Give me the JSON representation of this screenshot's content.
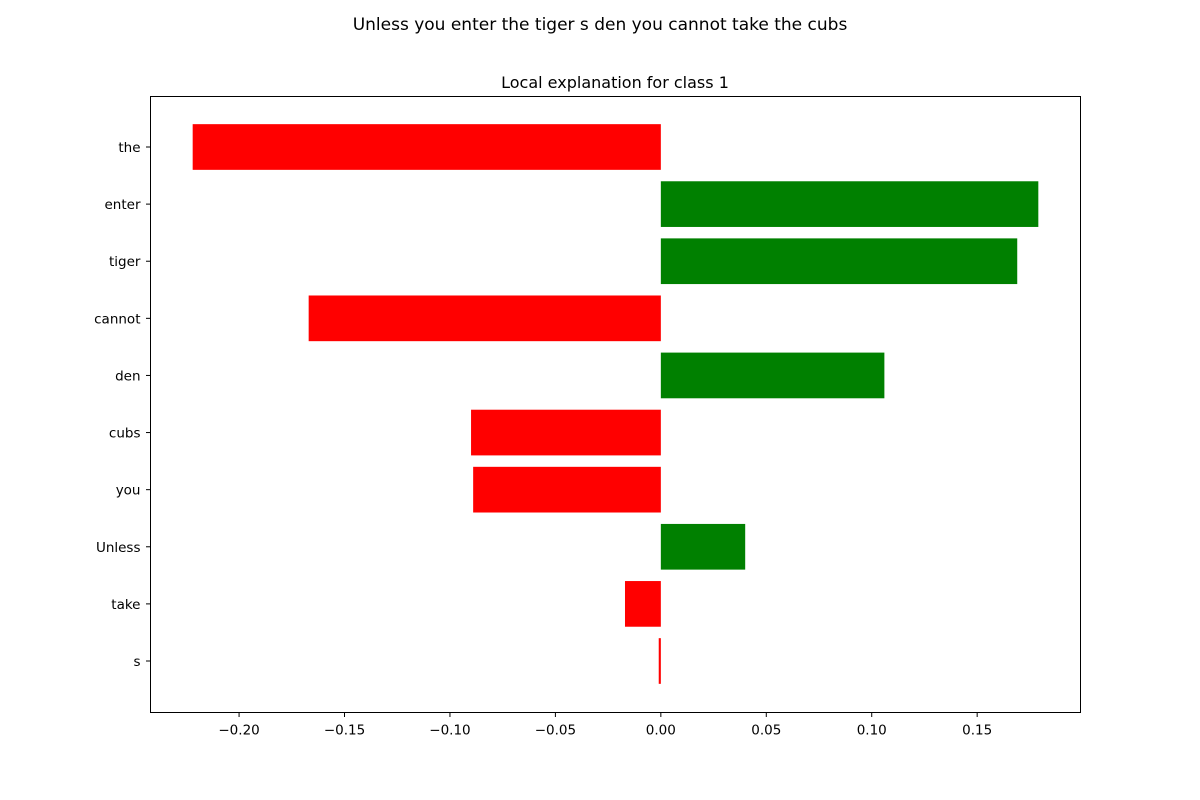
{
  "figure": {
    "suptitle": "Unless you enter the tiger s den you cannot take the cubs"
  },
  "chart_data": {
    "type": "bar",
    "orientation": "horizontal",
    "title": "Local explanation for class 1",
    "xlabel": "",
    "ylabel": "",
    "categories": [
      "the",
      "enter",
      "tiger",
      "cannot",
      "den",
      "cubs",
      "you",
      "Unless",
      "take",
      "s"
    ],
    "values": [
      -0.222,
      0.179,
      0.169,
      -0.167,
      0.106,
      -0.09,
      -0.089,
      0.04,
      -0.017,
      -0.001
    ],
    "xlim": [
      -0.242,
      0.199
    ],
    "xticks": [
      -0.2,
      -0.15,
      -0.1,
      -0.05,
      0.0,
      0.05,
      0.1,
      0.15
    ],
    "xtick_labels": [
      "−0.20",
      "−0.15",
      "−0.10",
      "−0.05",
      "0.00",
      "0.05",
      "0.10",
      "0.15"
    ],
    "positive_color": "#008000",
    "negative_color": "#ff0000",
    "grid": false,
    "legend": "none"
  }
}
